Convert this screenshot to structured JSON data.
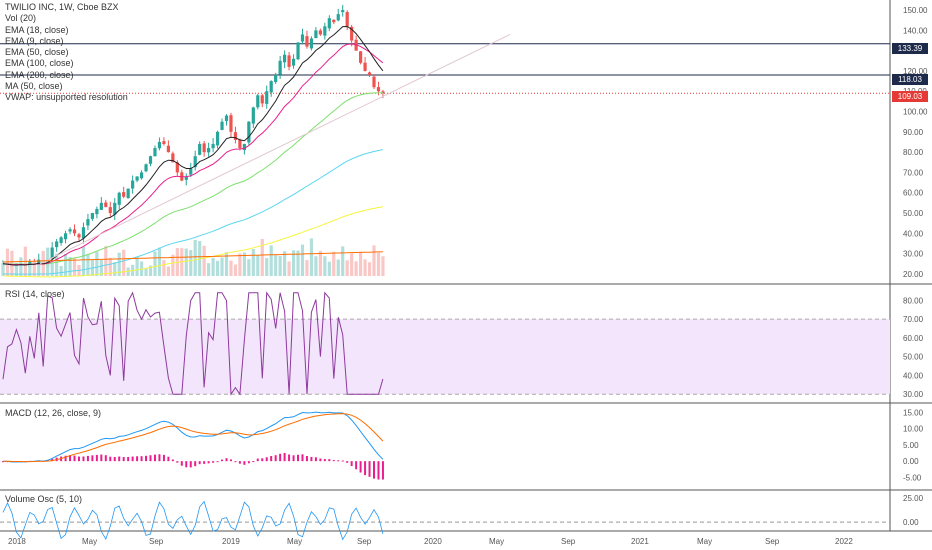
{
  "legend": {
    "title": "TWILIO INC, 1W, Cboe BZX",
    "items": [
      "Vol (20)",
      "EMA (18, close)",
      "EMA (9, close)",
      "EMA (50, close)",
      "EMA (100, close)",
      "EMA (200, close)",
      "MA (50, close)",
      "VWAP: unsupported resolution"
    ]
  },
  "panes": {
    "rsi_label": "RSI (14, close)",
    "macd_label": "MACD (12, 26, close, 9)",
    "volosc_label": "Volume Osc (5, 10)"
  },
  "price_axis": {
    "ticks": [
      "150.00",
      "140.00",
      "130.00",
      "120.00",
      "110.00",
      "100.00",
      "90.00",
      "80.00",
      "70.00",
      "60.00",
      "50.00",
      "40.00",
      "30.00",
      "20.00"
    ],
    "tags": [
      {
        "text": "133.39",
        "color": "#1e2a4a"
      },
      {
        "text": "118.03",
        "color": "#1e2a4a"
      },
      {
        "text": "109.03",
        "color": "#e53935"
      }
    ]
  },
  "rsi_axis": {
    "ticks": [
      "80.00",
      "70.00",
      "60.00",
      "50.00",
      "40.00",
      "30.00"
    ]
  },
  "macd_axis": {
    "ticks": [
      "15.00",
      "10.00",
      "5.00",
      "0.00",
      "-5.00"
    ]
  },
  "volosc_axis": {
    "ticks": [
      "25.00",
      "0.00"
    ]
  },
  "time_axis": {
    "ticks": [
      "2018",
      "May",
      "Sep",
      "2019",
      "May",
      "Sep",
      "2020",
      "May",
      "Sep",
      "2021",
      "May",
      "Sep",
      "2022"
    ]
  },
  "colors": {
    "up": "#26a69a",
    "down": "#ef5350",
    "rsi": "#8e3a9e",
    "macd": "#2196f3",
    "signal": "#ff6d00",
    "ema9": "#e91e8c",
    "ema18": "#222222",
    "ema50": "#7ee06e",
    "ema100": "#5dd6f0",
    "ema200": "#f5f542",
    "ma50": "#aaaaaa",
    "vwap": "#cfcfcf"
  },
  "chart_data": {
    "type": "candlestick",
    "interval": "1W",
    "symbol": "TWILIO INC",
    "ylim": [
      17,
      152
    ],
    "closes": [
      25,
      24,
      23,
      24,
      25,
      24,
      26,
      25,
      27,
      24,
      28,
      33,
      36,
      38,
      40,
      42,
      40,
      38,
      43,
      47,
      50,
      52,
      55,
      53,
      50,
      55,
      60,
      58,
      62,
      66,
      68,
      70,
      74,
      78,
      82,
      85,
      84,
      80,
      75,
      70,
      66,
      68,
      72,
      78,
      84,
      80,
      82,
      84,
      90,
      95,
      98,
      90,
      86,
      82,
      84,
      95,
      102,
      108,
      104,
      110,
      115,
      118,
      125,
      128,
      122,
      126,
      134,
      138,
      132,
      136,
      140,
      138,
      142,
      146,
      144,
      148,
      150,
      142,
      135,
      130,
      124,
      120,
      118,
      112,
      110,
      109
    ],
    "last_price": "109.03",
    "levels": [
      "133.39",
      "118.03"
    ],
    "rsi_range": [
      28,
      86
    ],
    "macd_range": [
      -7,
      16
    ],
    "volosc_range": [
      -6,
      30
    ]
  }
}
